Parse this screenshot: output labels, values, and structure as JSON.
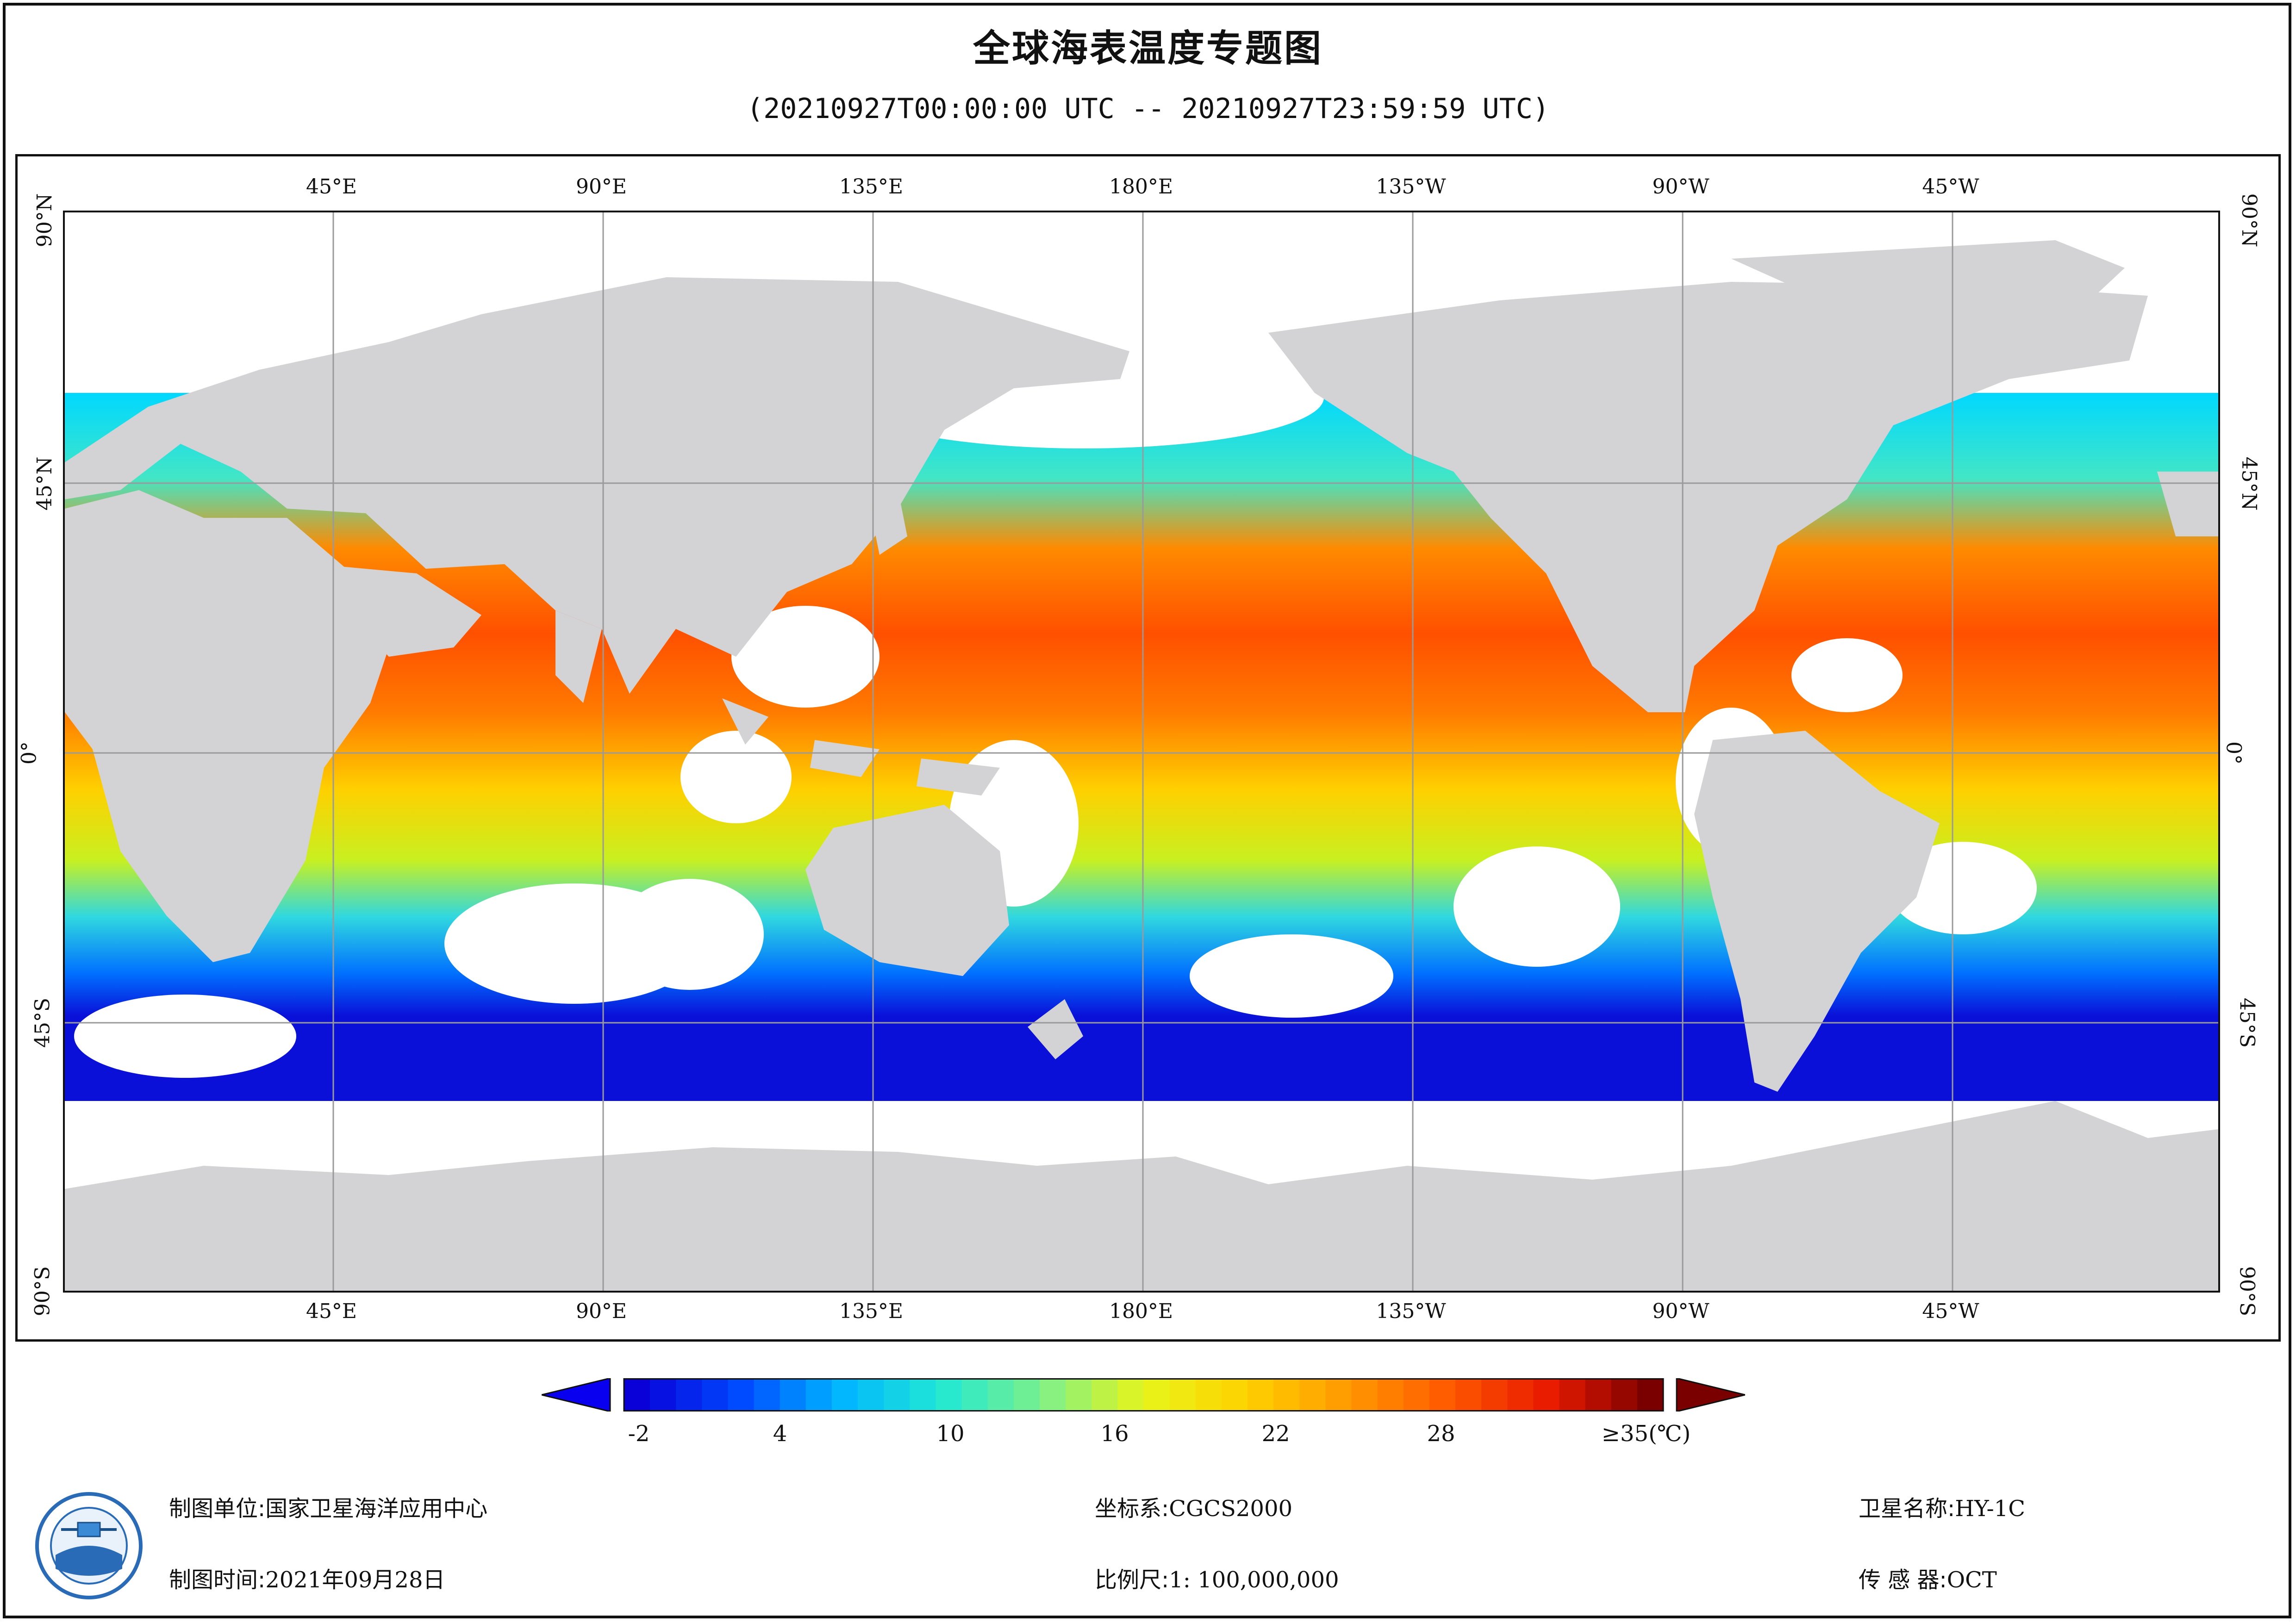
{
  "title": "全球海表温度专题图",
  "time_range": "(20210927T00:00:00 UTC -- 20210927T23:59:59 UTC)",
  "lon_labels": [
    "45°E",
    "90°E",
    "135°E",
    "180°E",
    "135°W",
    "90°W",
    "45°W"
  ],
  "lat_labels": [
    "90°N",
    "45°N",
    "0°",
    "45°S",
    "90°S"
  ],
  "legend": {
    "ticks": [
      "-2",
      "4",
      "10",
      "16",
      "22",
      "28",
      "≥35(℃)"
    ],
    "colors": [
      "#0a00d8",
      "#0048ff",
      "#00b4ff",
      "#21e8d4",
      "#7df08a",
      "#e6f51a",
      "#ffd200",
      "#ff9a00",
      "#ff5a00",
      "#e81a00",
      "#7a0000"
    ]
  },
  "footer": {
    "unit_label": "制图单位:",
    "unit_value": "国家卫星海洋应用中心",
    "time_label": "制图时间:",
    "time_value": "2021年09月28日",
    "crs_label": "坐标系:",
    "crs_value": "CGCS2000",
    "scale_label": "比例尺:",
    "scale_value": "1: 100,000,000",
    "sat_label": "卫星名称:",
    "sat_value": "HY-1C",
    "sensor_label": "传 感 器:",
    "sensor_value": "OCT"
  },
  "colors": {
    "land": "#d3d3d5",
    "grid": "#9a9a9a",
    "cloud": "#ffffff"
  }
}
